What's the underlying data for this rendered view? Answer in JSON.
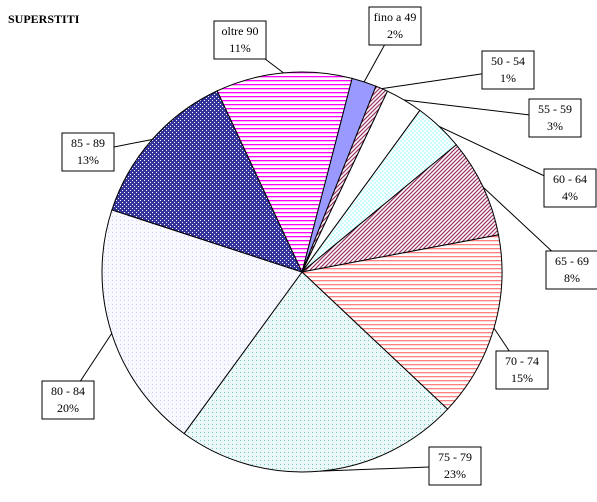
{
  "chart_data": {
    "type": "pie",
    "title": "SUPERSTITI",
    "categories": [
      "fino a 49",
      "50 - 54",
      "55 - 59",
      "60 - 64",
      "65 - 69",
      "70 - 74",
      "75 - 79",
      "80 - 84",
      "85 - 89",
      "oltre 90"
    ],
    "values": [
      2,
      1,
      3,
      4,
      8,
      15,
      23,
      20,
      13,
      11
    ],
    "value_labels": [
      "2%",
      "1%",
      "3%",
      "4%",
      "8%",
      "15%",
      "23%",
      "20%",
      "13%",
      "11%"
    ],
    "colors": [
      "#9999ff",
      "#993366",
      "#ffffff",
      "#ccffff",
      "#993366",
      "#ff8080",
      "#66cccc",
      "#ccccff",
      "#333399",
      "#ff00ff"
    ]
  }
}
